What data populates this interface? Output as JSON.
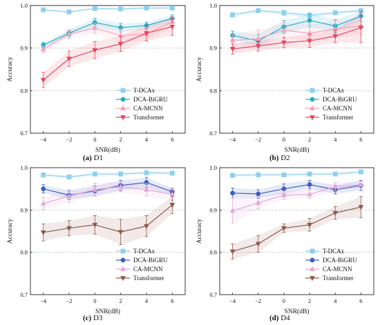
{
  "figure_title": "",
  "legend_labels": [
    "T-DCAx",
    "DCA-BiGRU",
    "CA-MCNN",
    "Transformer"
  ],
  "chart_data": [
    {
      "type": "line",
      "caption": {
        "letter": "(a)",
        "name": "D1"
      },
      "xlabel": "SNR(dB)",
      "ylabel": "Accuracy",
      "x": [
        -4,
        -2,
        0,
        2,
        4,
        6
      ],
      "xticks": [
        "−4",
        "−2",
        "0",
        "2",
        "4",
        "6"
      ],
      "ylim": [
        0.7,
        1.0
      ],
      "yticks": [
        "0.7",
        "0.8",
        "0.9",
        "1.0"
      ],
      "grid": "dashed horizontal at 0.8 and 0.9",
      "legend": "bottom-right",
      "series": [
        {
          "name": "T-DCAx",
          "marker": "square",
          "color": "#8ed0ee",
          "values": [
            0.99,
            0.985,
            0.993,
            0.992,
            0.994,
            0.994
          ],
          "err": [
            0.003,
            0.003,
            0.003,
            0.003,
            0.003,
            0.003
          ]
        },
        {
          "name": "DCA-BiGRU",
          "marker": "circle",
          "color": "#27aec6",
          "values": [
            0.907,
            0.935,
            0.96,
            0.948,
            0.953,
            0.97
          ],
          "err": [
            0.006,
            0.008,
            0.01,
            0.01,
            0.008,
            0.008
          ]
        },
        {
          "name": "CA-MCNN",
          "marker": "triangle-up",
          "color": "#f2a2b6",
          "values": [
            0.897,
            0.933,
            0.947,
            0.93,
            0.933,
            0.962
          ],
          "err": [
            0.008,
            0.01,
            0.012,
            0.015,
            0.015,
            0.012
          ]
        },
        {
          "name": "Transformer",
          "marker": "triangle-down",
          "color": "#e8475f",
          "values": [
            0.825,
            0.875,
            0.895,
            0.91,
            0.935,
            0.95
          ],
          "err": [
            0.018,
            0.018,
            0.02,
            0.018,
            0.018,
            0.02
          ]
        }
      ]
    },
    {
      "type": "line",
      "caption": {
        "letter": "(b)",
        "name": "D2"
      },
      "xlabel": "SNR(dB)",
      "ylabel": "Accuracy",
      "x": [
        -4,
        -2,
        0,
        2,
        4,
        6
      ],
      "xticks": [
        "−4",
        "−2",
        "0",
        "2",
        "4",
        "6"
      ],
      "ylim": [
        0.7,
        1.0
      ],
      "yticks": [
        "0.7",
        "0.8",
        "0.9",
        "1.0"
      ],
      "grid": "dashed horizontal at 0.8 and 0.9",
      "legend": "right",
      "series": [
        {
          "name": "T-DCAx",
          "marker": "square",
          "color": "#8ed0ee",
          "values": [
            0.978,
            0.988,
            0.983,
            0.977,
            0.983,
            0.988
          ],
          "err": [
            0.005,
            0.004,
            0.006,
            0.006,
            0.005,
            0.004
          ]
        },
        {
          "name": "DCA-BiGRU",
          "marker": "circle",
          "color": "#27aec6",
          "values": [
            0.93,
            0.917,
            0.95,
            0.965,
            0.952,
            0.975
          ],
          "err": [
            0.01,
            0.015,
            0.015,
            0.015,
            0.015,
            0.012
          ]
        },
        {
          "name": "CA-MCNN",
          "marker": "triangle-up",
          "color": "#f2a2b6",
          "values": [
            0.918,
            0.922,
            0.942,
            0.935,
            0.945,
            0.952
          ],
          "err": [
            0.015,
            0.02,
            0.018,
            0.02,
            0.02,
            0.02
          ]
        },
        {
          "name": "Transformer",
          "marker": "triangle-down",
          "color": "#e8475f",
          "values": [
            0.898,
            0.905,
            0.913,
            0.917,
            0.928,
            0.948
          ],
          "err": [
            0.012,
            0.012,
            0.012,
            0.015,
            0.015,
            0.035
          ]
        }
      ]
    },
    {
      "type": "line",
      "caption": {
        "letter": "(c)",
        "name": "D3"
      },
      "xlabel": "SNR(dB)",
      "ylabel": "Accuracy",
      "x": [
        -4,
        -2,
        0,
        2,
        4,
        6
      ],
      "xticks": [
        "−4",
        "−2",
        "0",
        "2",
        "4",
        "6"
      ],
      "ylim": [
        0.7,
        1.0
      ],
      "yticks": [
        "0.7",
        "0.8",
        "0.9",
        "1.0"
      ],
      "grid": "dashed horizontal at 0.8 and 0.9",
      "legend": "bottom-right",
      "series": [
        {
          "name": "T-DCAx",
          "marker": "square",
          "color": "#8ed0ee",
          "values": [
            0.983,
            0.978,
            0.985,
            0.985,
            0.988,
            0.987
          ],
          "err": [
            0.004,
            0.004,
            0.004,
            0.004,
            0.004,
            0.004
          ]
        },
        {
          "name": "DCA-BiGRU",
          "marker": "circle",
          "color": "#3f5fc4",
          "values": [
            0.95,
            0.935,
            0.945,
            0.958,
            0.965,
            0.943
          ],
          "err": [
            0.01,
            0.01,
            0.012,
            0.012,
            0.012,
            0.008
          ]
        },
        {
          "name": "CA-MCNN",
          "marker": "triangle-up",
          "color": "#e3a8d8",
          "values": [
            0.915,
            0.933,
            0.948,
            0.955,
            0.948,
            0.937
          ],
          "err": [
            0.015,
            0.015,
            0.015,
            0.012,
            0.015,
            0.015
          ]
        },
        {
          "name": "Transformer",
          "marker": "triangle-down",
          "color": "#8f5a4a",
          "values": [
            0.847,
            0.857,
            0.865,
            0.848,
            0.862,
            0.912
          ],
          "err": [
            0.02,
            0.018,
            0.022,
            0.03,
            0.025,
            0.02
          ]
        }
      ]
    },
    {
      "type": "line",
      "caption": {
        "letter": "(d)",
        "name": "D4"
      },
      "xlabel": "SNR(dB)",
      "ylabel": "Accuracy",
      "x": [
        -4,
        -2,
        0,
        2,
        4,
        6
      ],
      "xticks": [
        "−4",
        "−2",
        "0",
        "2",
        "4",
        "6"
      ],
      "ylim": [
        0.7,
        1.0
      ],
      "yticks": [
        "0.7",
        "0.8",
        "0.9",
        "1.0"
      ],
      "grid": "dashed horizontal at 0.8 and 0.9",
      "legend": "bottom-right",
      "series": [
        {
          "name": "T-DCAx",
          "marker": "square",
          "color": "#8ed0ee",
          "values": [
            0.982,
            0.983,
            0.983,
            0.985,
            0.985,
            0.99
          ],
          "err": [
            0.004,
            0.004,
            0.004,
            0.004,
            0.004,
            0.004
          ]
        },
        {
          "name": "DCA-BiGRU",
          "marker": "circle",
          "color": "#3f5fc4",
          "values": [
            0.94,
            0.938,
            0.95,
            0.96,
            0.948,
            0.958
          ],
          "err": [
            0.012,
            0.01,
            0.012,
            0.01,
            0.01,
            0.012
          ]
        },
        {
          "name": "CA-MCNN",
          "marker": "triangle-up",
          "color": "#e3a8d8",
          "values": [
            0.898,
            0.917,
            0.935,
            0.937,
            0.955,
            0.96
          ],
          "err": [
            0.03,
            0.015,
            0.01,
            0.01,
            0.01,
            0.008
          ]
        },
        {
          "name": "Transformer",
          "marker": "triangle-down",
          "color": "#8f5a4a",
          "values": [
            0.802,
            0.82,
            0.857,
            0.865,
            0.893,
            0.907
          ],
          "err": [
            0.018,
            0.02,
            0.01,
            0.015,
            0.015,
            0.025
          ]
        }
      ]
    }
  ]
}
